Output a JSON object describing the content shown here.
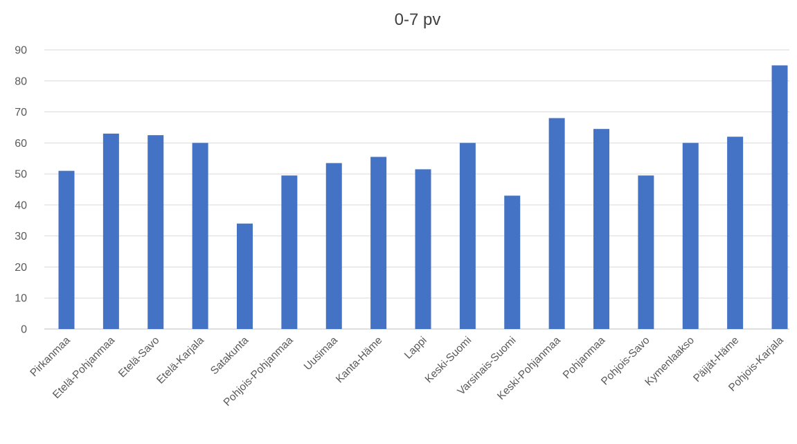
{
  "chart_data": {
    "type": "bar",
    "title": "0-7 pv",
    "xlabel": "",
    "ylabel": "",
    "ylim": [
      0,
      90
    ],
    "yticks": [
      0,
      10,
      20,
      30,
      40,
      50,
      60,
      70,
      80,
      90
    ],
    "grid": true,
    "legend": "none",
    "bar_color": "#4472C4",
    "categories": [
      "Pirkanmaa",
      "Etelä-Pohjanmaa",
      "Etelä-Savo",
      "Etelä-Karjala",
      "Satakunta",
      "Pohjois-Pohjanmaa",
      "Uusimaa",
      "Kanta-Häme",
      "Lappi",
      "Keski-Suomi",
      "Varsinais-Suomi",
      "Keski-Pohjanmaa",
      "Pohjanmaa",
      "Pohjois-Savo",
      "Kymenlaakso",
      "Päijät-Häme",
      "Pohjois-Karjala"
    ],
    "values": [
      51,
      63,
      62.5,
      60,
      34,
      49.5,
      53.5,
      55.5,
      51.5,
      60,
      43,
      68,
      64.5,
      49.5,
      60,
      62,
      85
    ]
  }
}
